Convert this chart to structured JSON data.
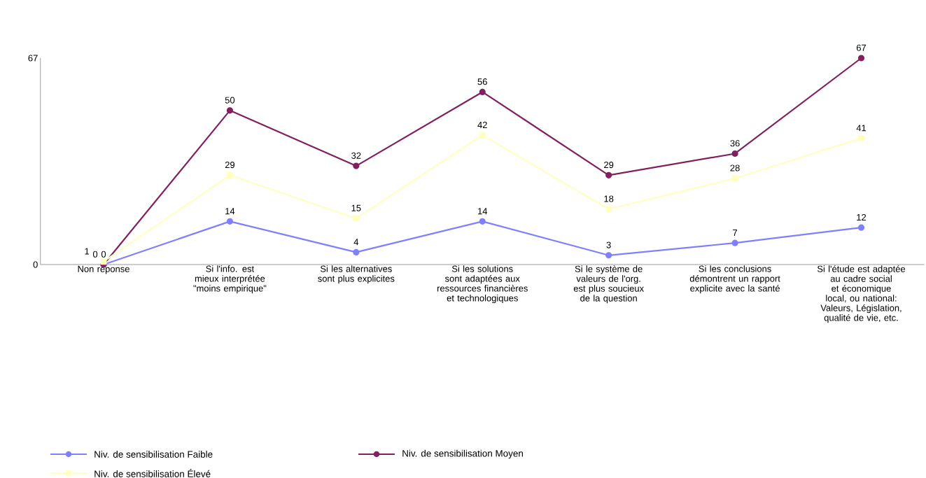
{
  "chart_data": {
    "type": "line",
    "categories": [
      "Non réponse",
      "Si l'info. est mieux interprétée \"moins empirique\"",
      "Si les alternatives sont plus explicites",
      "Si les solutions sont adaptées aux ressources financières et technologiques",
      "Si le système de valeurs de l'org. est plus soucieux de la question",
      "Si les conclusions démontrent un rapport explicite avec la santé",
      "Si l'étude est adaptée au cadre social et économique local, ou national: Valeurs, Législation, qualité de vie, etc."
    ],
    "series": [
      {
        "name": "Niv. de sensibilisation Faible",
        "color": "#8080ff",
        "values": [
          0,
          14,
          4,
          14,
          3,
          7,
          12
        ]
      },
      {
        "name": "Niv. de sensibilisation Moyen",
        "color": "#80205f",
        "values": [
          0,
          50,
          32,
          56,
          29,
          36,
          67
        ]
      },
      {
        "name": "Niv. de sensibilisation Élevé",
        "color": "#ffffc0",
        "marker": "square",
        "values": [
          1,
          29,
          15,
          42,
          18,
          28,
          41
        ]
      }
    ],
    "ylim": [
      0,
      67
    ],
    "yticks": [
      0,
      67
    ],
    "data_labels": true,
    "marker": "circle",
    "legend": "bottom",
    "grid": false
  }
}
